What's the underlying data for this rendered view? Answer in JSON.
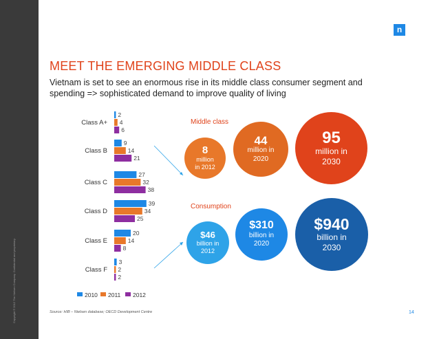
{
  "slide": {
    "title": "MEET THE EMERGING MIDDLE CLASS",
    "subtitle": "Vietnam is set to see an enormous rise in its middle class consumer segment and spending => sophisticated demand to improve quality of living",
    "source": "Source: HIB – Nielsen database; OECD Development Centre",
    "page_number": "14",
    "copyright": "Copyright © 2012 The Nielsen Company. Confidential and proprietary.",
    "logo_text": "n"
  },
  "colors": {
    "accent": "#e0431b",
    "blue": "#1e88e5",
    "orange": "#e8782a",
    "purple": "#8e2ea0",
    "dark_bar": "#3a3a3a"
  },
  "chart_data": [
    {
      "type": "bar",
      "orientation": "horizontal",
      "categories": [
        "Class A+",
        "Class B",
        "Class C",
        "Class D",
        "Class E",
        "Class F"
      ],
      "series": [
        {
          "name": "2010",
          "color": "#1e88e5",
          "values": [
            2,
            9,
            27,
            39,
            20,
            3
          ]
        },
        {
          "name": "2011",
          "color": "#e8782a",
          "values": [
            4,
            14,
            32,
            34,
            14,
            2
          ]
        },
        {
          "name": "2012",
          "color": "#8e2ea0",
          "values": [
            6,
            21,
            38,
            25,
            8,
            2
          ]
        }
      ],
      "legend_position": "bottom",
      "grid": false
    }
  ],
  "middle_class": {
    "label": "Middle class",
    "items": [
      {
        "value": "8",
        "unit_line1": "million",
        "unit_line2": "in 2012",
        "color": "#e8782a"
      },
      {
        "value": "44",
        "unit_line1": "million in",
        "unit_line2": "2020",
        "color": "#e06a22"
      },
      {
        "value": "95",
        "unit_line1": "million in",
        "unit_line2": "2030",
        "color": "#e0431b"
      }
    ]
  },
  "consumption": {
    "label": "Consumption",
    "items": [
      {
        "value": "$46",
        "unit_line1": "billion in",
        "unit_line2": "2012",
        "color": "#2ea3e8"
      },
      {
        "value": "$310",
        "unit_line1": "billion in",
        "unit_line2": "2020",
        "color": "#1e88e5"
      },
      {
        "value": "$940",
        "unit_line1": "billion in",
        "unit_line2": "2030",
        "color": "#1a5fa8"
      }
    ]
  }
}
